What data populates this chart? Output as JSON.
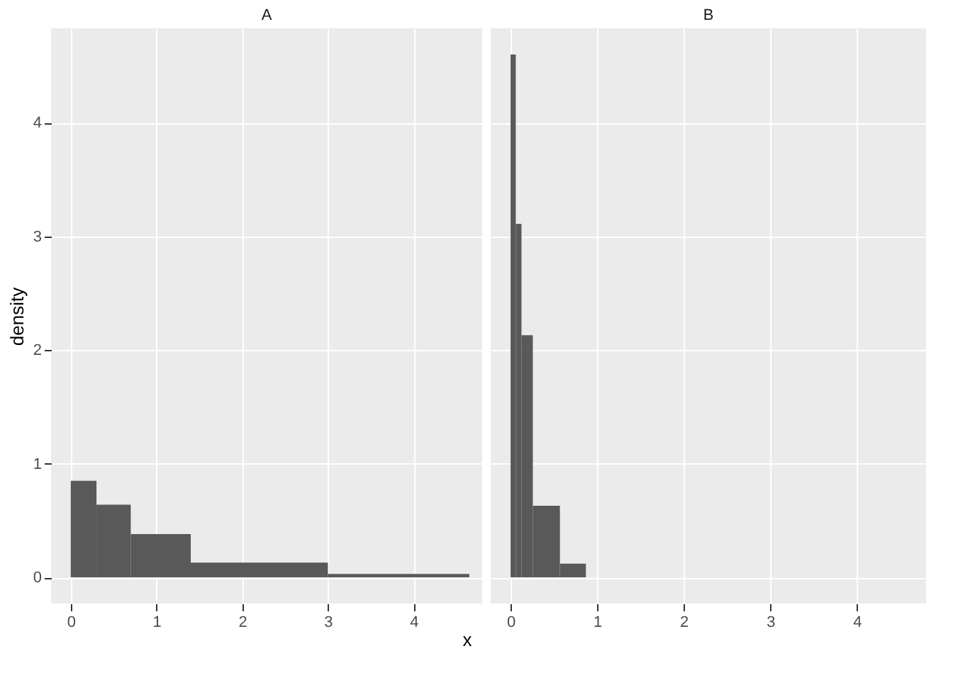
{
  "chart_data": [
    {
      "type": "histogram",
      "title": "A",
      "xlabel": "x",
      "ylabel": "density",
      "color": "#595959",
      "bins": [
        0,
        0.3,
        0.7,
        1.4,
        3.0,
        4.65
      ],
      "values": [
        0.85,
        0.64,
        0.38,
        0.13,
        0.03
      ],
      "xlim": [
        -0.23,
        4.8
      ],
      "xticks": [
        0,
        1,
        2,
        3,
        4
      ],
      "ylim": [
        -0.23,
        4.83
      ],
      "yticks": [
        0,
        1,
        2,
        3,
        4
      ],
      "grid": true
    },
    {
      "type": "histogram",
      "title": "B",
      "color": "#595959",
      "bins": [
        0,
        0.06,
        0.126,
        0.257,
        0.57,
        0.87
      ],
      "values": [
        4.6,
        3.11,
        2.13,
        0.63,
        0.12
      ],
      "xlim": [
        -0.23,
        4.8
      ],
      "xticks": [
        0,
        1,
        2,
        3,
        4
      ],
      "ylim": [
        -0.23,
        4.83
      ],
      "yticks": [
        0,
        1,
        2,
        3,
        4
      ],
      "grid": true,
      "tick_labels": "x"
    }
  ]
}
